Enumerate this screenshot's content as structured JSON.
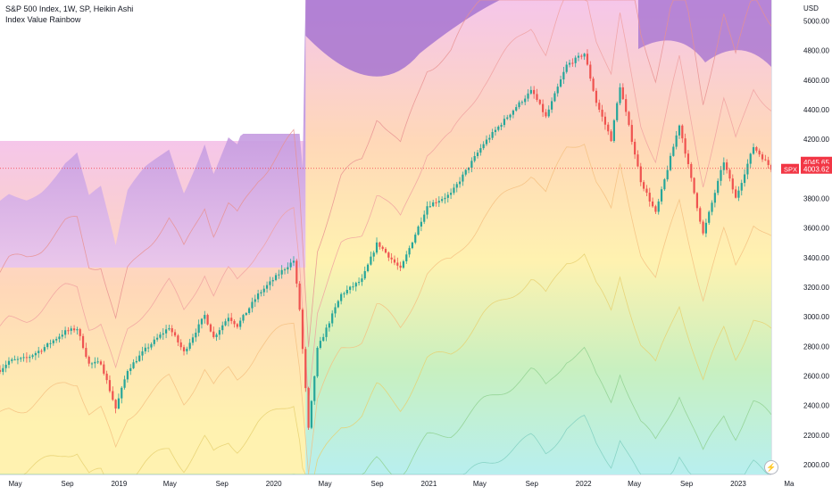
{
  "header": {
    "title": "S&P 500 Index, 1W, SP, Heikin Ashi",
    "indicator": "Index Value Rainbow"
  },
  "axis": {
    "currency": "USD",
    "zap_icon": "lightning-icon"
  },
  "colors": {
    "up": "#26a69a",
    "down": "#ef5350",
    "price_line": "#f23645",
    "purple": "#a16fd0",
    "pink": "#f5c6ea",
    "peach": "#ffd8b8",
    "yellow": "#fff2b0",
    "green": "#c8f0c0",
    "cyan": "#b8efef"
  },
  "chart_data": {
    "type": "candlestick",
    "title": "S&P 500 Index, 1W, SP, Heikin Ashi",
    "indicator": "Index Value Rainbow",
    "y_unit": "USD",
    "ylim": [
      1960,
      5000
    ],
    "xlim": [
      "2018-03-26",
      "2023-03-20"
    ],
    "y_ticks": [
      2000,
      2200,
      2400,
      2600,
      2800,
      3000,
      3200,
      3400,
      3600,
      3800,
      4000,
      4200,
      4400,
      4600,
      4800,
      5000
    ],
    "y_tick_labels": [
      "2000.00",
      "2200.00",
      "2400.00",
      "2600.00",
      "2800.00",
      "3000.00",
      "3200.00",
      "3400.00",
      "3600.00",
      "3800.00",
      "4000.00",
      "4200.00",
      "4400.00",
      "4600.00",
      "4800.00",
      "5000.00"
    ],
    "x_ticks": [
      {
        "date": "2018-05-01",
        "label": "May"
      },
      {
        "date": "2018-09-01",
        "label": "Sep"
      },
      {
        "date": "2019-01-01",
        "label": "2019"
      },
      {
        "date": "2019-05-01",
        "label": "May"
      },
      {
        "date": "2019-09-01",
        "label": "Sep"
      },
      {
        "date": "2020-01-01",
        "label": "2020"
      },
      {
        "date": "2020-05-01",
        "label": "May"
      },
      {
        "date": "2020-09-01",
        "label": "Sep"
      },
      {
        "date": "2021-01-01",
        "label": "2021"
      },
      {
        "date": "2021-05-01",
        "label": "May"
      },
      {
        "date": "2021-09-01",
        "label": "Sep"
      },
      {
        "date": "2022-01-01",
        "label": "2022"
      },
      {
        "date": "2022-05-01",
        "label": "May"
      },
      {
        "date": "2022-09-01",
        "label": "Sep"
      },
      {
        "date": "2023-01-01",
        "label": "2023"
      },
      {
        "date": "2023-05-01",
        "label": "Ma"
      }
    ],
    "price_path": [
      [
        "2018-03-26",
        2640
      ],
      [
        "2018-04-16",
        2700
      ],
      [
        "2018-05-28",
        2720
      ],
      [
        "2018-07-02",
        2780
      ],
      [
        "2018-08-27",
        2900
      ],
      [
        "2018-09-24",
        2920
      ],
      [
        "2018-10-22",
        2680
      ],
      [
        "2018-11-19",
        2690
      ],
      [
        "2018-12-24",
        2380
      ],
      [
        "2019-01-21",
        2640
      ],
      [
        "2019-03-04",
        2780
      ],
      [
        "2019-04-29",
        2930
      ],
      [
        "2019-06-03",
        2760
      ],
      [
        "2019-07-22",
        3010
      ],
      [
        "2019-08-12",
        2860
      ],
      [
        "2019-09-16",
        3000
      ],
      [
        "2019-10-07",
        2940
      ],
      [
        "2019-11-25",
        3150
      ],
      [
        "2020-01-20",
        3310
      ],
      [
        "2020-02-17",
        3380
      ],
      [
        "2020-03-02",
        3050
      ],
      [
        "2020-03-23",
        2240
      ],
      [
        "2020-04-13",
        2780
      ],
      [
        "2020-06-08",
        3150
      ],
      [
        "2020-07-27",
        3250
      ],
      [
        "2020-09-01",
        3500
      ],
      [
        "2020-10-26",
        3320
      ],
      [
        "2020-12-28",
        3750
      ],
      [
        "2021-02-22",
        3830
      ],
      [
        "2021-05-10",
        4170
      ],
      [
        "2021-07-26",
        4420
      ],
      [
        "2021-09-01",
        4530
      ],
      [
        "2021-10-04",
        4350
      ],
      [
        "2021-11-22",
        4700
      ],
      [
        "2022-01-03",
        4780
      ],
      [
        "2022-01-31",
        4450
      ],
      [
        "2022-03-07",
        4200
      ],
      [
        "2022-03-28",
        4560
      ],
      [
        "2022-05-16",
        3920
      ],
      [
        "2022-06-20",
        3700
      ],
      [
        "2022-08-15",
        4300
      ],
      [
        "2022-10-10",
        3560
      ],
      [
        "2022-11-28",
        4050
      ],
      [
        "2022-12-26",
        3800
      ],
      [
        "2023-02-06",
        4150
      ],
      [
        "2023-03-20",
        4003
      ]
    ],
    "current_price_lines": [
      {
        "label": "SPX",
        "value": 4003.62,
        "text": "4003.62"
      },
      {
        "label": "",
        "value": 4045.65,
        "text": "4045.65"
      }
    ]
  }
}
